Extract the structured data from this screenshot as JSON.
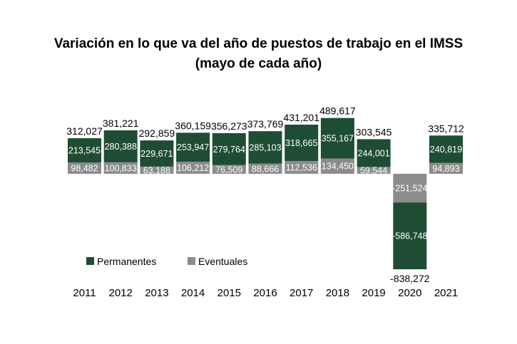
{
  "title_line1": "Variación en lo que va del año de puestos de trabajo en el IMSS",
  "title_line2": "(mayo de cada año)",
  "chart_data": {
    "type": "bar",
    "stacked": true,
    "categories": [
      "2011",
      "2012",
      "2013",
      "2014",
      "2015",
      "2016",
      "2017",
      "2018",
      "2019",
      "2020",
      "2021"
    ],
    "series": [
      {
        "name": "Permanentes",
        "color": "#1e4d33",
        "values": [
          213545,
          280388,
          229671,
          253947,
          279764,
          285103,
          318665,
          355167,
          244001,
          -586748,
          240819
        ],
        "labels": [
          "213,545",
          "280,388",
          "229,671",
          "253,947",
          "279,764",
          "285,103",
          "318,665",
          "355,167",
          "244,001",
          "-586,748",
          "240,819"
        ]
      },
      {
        "name": "Eventuales",
        "color": "#8c8c8c",
        "values": [
          98482,
          100833,
          63188,
          106212,
          76509,
          88666,
          112536,
          134450,
          59544,
          -251524,
          94893
        ],
        "labels": [
          "98,482",
          "100,833",
          "63,188",
          "106,212",
          "76,509",
          "88,666",
          "112,536",
          "134,450",
          "59,544",
          "-251,524",
          "94,893"
        ]
      }
    ],
    "totals": [
      312027,
      381221,
      292859,
      360159,
      356273,
      373769,
      431201,
      489617,
      303545,
      -838272,
      335712
    ],
    "total_labels": [
      "312,027",
      "381,221",
      "292,859",
      "360,159",
      "356,273",
      "373,769",
      "431,201",
      "489,617",
      "303,545",
      "-838,272",
      "335,712"
    ],
    "legend_position": "bottom-left",
    "grid": false
  }
}
